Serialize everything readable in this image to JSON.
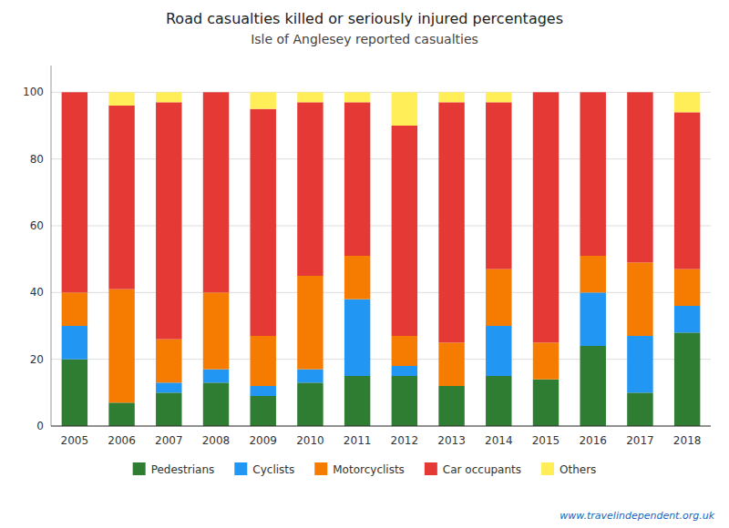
{
  "chart_data": {
    "type": "bar",
    "stacked": true,
    "title": "Road casualties killed or seriously injured percentages",
    "subtitle": "Isle of Anglesey reported casualties",
    "annotations": [
      "www.travelindependent.org.uk"
    ],
    "categories": [
      "2005",
      "2006",
      "2007",
      "2008",
      "2009",
      "2010",
      "2011",
      "2012",
      "2013",
      "2014",
      "2015",
      "2016",
      "2017",
      "2018"
    ],
    "series": [
      {
        "name": "Pedestrians",
        "color": "#2e7d32",
        "values": [
          20,
          7,
          10,
          13,
          9,
          13,
          15,
          15,
          12,
          15,
          14,
          24,
          10,
          28
        ]
      },
      {
        "name": "Cyclists",
        "color": "#2196f3",
        "values": [
          10,
          0,
          3,
          4,
          3,
          4,
          23,
          3,
          0,
          15,
          0,
          16,
          17,
          8
        ]
      },
      {
        "name": "Motorcyclists",
        "color": "#f57c00",
        "values": [
          10,
          34,
          13,
          23,
          15,
          28,
          13,
          9,
          13,
          17,
          11,
          11,
          22,
          11
        ]
      },
      {
        "name": "Car occupants",
        "color": "#e53935",
        "values": [
          60,
          55,
          71,
          60,
          68,
          52,
          46,
          63,
          72,
          50,
          75,
          49,
          51,
          47
        ]
      },
      {
        "name": "Others",
        "color": "#ffee58",
        "values": [
          0,
          4,
          3,
          0,
          5,
          3,
          3,
          10,
          3,
          3,
          0,
          0,
          0,
          6
        ]
      }
    ],
    "ylim": [
      0,
      108
    ],
    "yticks": [
      0,
      20,
      40,
      60,
      80,
      100
    ],
    "grid": true,
    "legend": "bottom"
  }
}
